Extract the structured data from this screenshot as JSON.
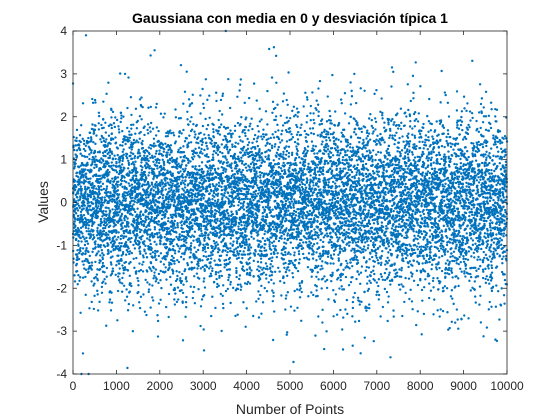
{
  "chart_data": {
    "type": "scatter",
    "title": "Gaussiana con media en 0 y desviación típica 1",
    "xlabel": "Number of Points",
    "ylabel": "Values",
    "xlim": [
      0,
      10000
    ],
    "ylim": [
      -4,
      4
    ],
    "x_ticks": [
      "0",
      "1000",
      "2000",
      "3000",
      "4000",
      "5000",
      "6000",
      "7000",
      "8000",
      "9000",
      "10000"
    ],
    "y_ticks": [
      "-4",
      "-3",
      "-2",
      "-1",
      "0",
      "1",
      "2",
      "3",
      "4"
    ],
    "grid": false,
    "legend": "none",
    "marker_color": "#0072BD",
    "series": [
      {
        "point_count": 10000,
        "distribution": "normal",
        "mean": 0,
        "std": 1,
        "x_start": 1,
        "x_step": 1,
        "notable_points": [
          {
            "x": 300,
            "y": 3.9
          },
          {
            "x": 1880,
            "y": 3.55
          },
          {
            "x": 3520,
            "y": 4.0
          },
          {
            "x": 4520,
            "y": 3.58
          },
          {
            "x": 4680,
            "y": 3.42
          },
          {
            "x": 230,
            "y": -3.52
          },
          {
            "x": 3020,
            "y": -3.45
          },
          {
            "x": 5080,
            "y": -3.72
          },
          {
            "x": 7350,
            "y": 3.15
          },
          {
            "x": 2620,
            "y": 3.05
          }
        ]
      }
    ]
  }
}
